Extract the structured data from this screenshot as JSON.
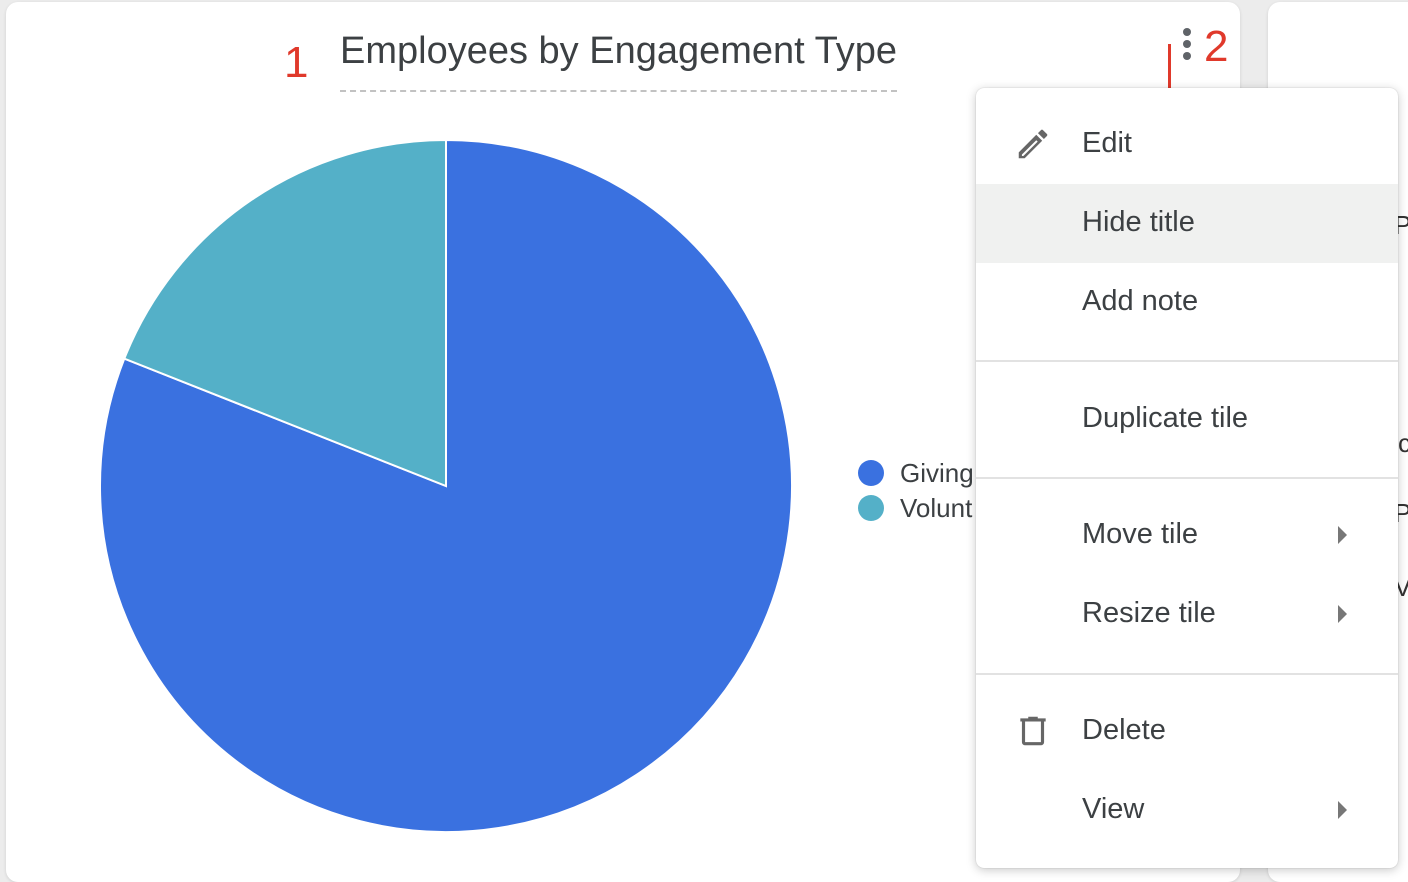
{
  "annotations": {
    "one": "1",
    "two": "2"
  },
  "tile": {
    "title": "Employees by Engagement Type"
  },
  "chart_data": {
    "type": "pie",
    "categories": [
      "Giving",
      "Volunt"
    ],
    "values": [
      81,
      19
    ],
    "colors": [
      "#3a71e0",
      "#54b0c8"
    ],
    "title": "Employees by Engagement Type",
    "legend": "right"
  },
  "menu": {
    "items": [
      {
        "label": "Edit",
        "icon": "pencil-icon"
      },
      {
        "label": "Hide title"
      },
      {
        "label": "Add note"
      },
      {
        "label": "Duplicate tile"
      },
      {
        "label": "Move tile",
        "submenu": true
      },
      {
        "label": "Resize tile",
        "submenu": true
      },
      {
        "label": "Delete",
        "icon": "trash-icon"
      },
      {
        "label": "View",
        "submenu": true
      }
    ]
  },
  "right_tile": {
    "fragments": [
      "Pa",
      "c",
      "Pa",
      "Ve"
    ]
  }
}
